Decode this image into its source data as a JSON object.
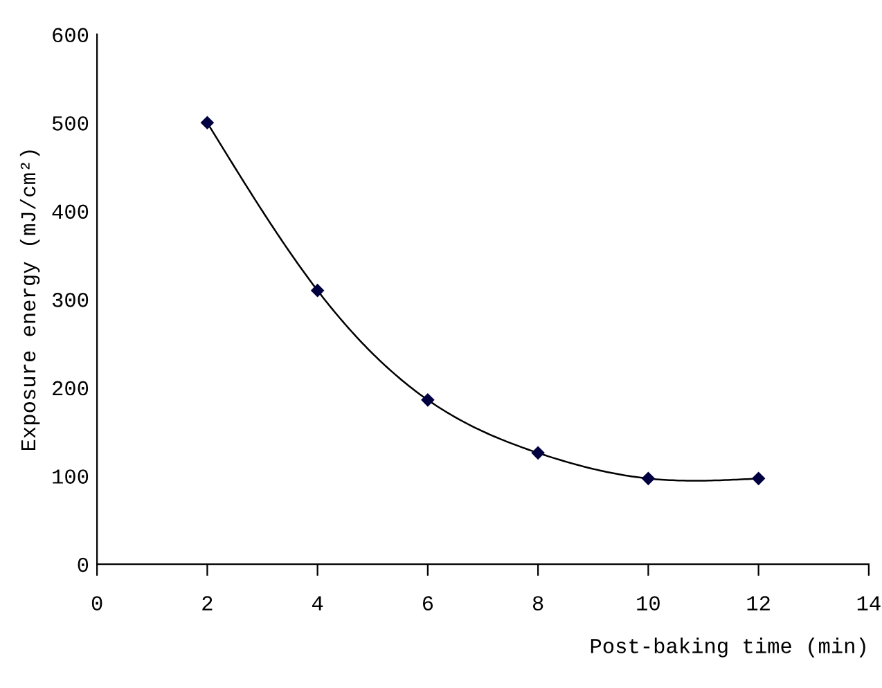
{
  "chart_data": {
    "type": "line",
    "xlabel": "Post-baking time (min)",
    "ylabel": "Exposure energy (mJ/cm²)",
    "x": [
      2,
      4,
      6,
      8,
      10,
      12
    ],
    "series": [
      {
        "color": "#000040",
        "values": [
          500,
          310,
          186,
          126,
          97,
          97
        ]
      }
    ],
    "xlim": [
      0,
      14
    ],
    "xticks": [
      0,
      2,
      4,
      6,
      8,
      10,
      12,
      14
    ],
    "ylim": [
      0,
      600
    ],
    "yticks": [
      0,
      100,
      200,
      300,
      400,
      500,
      600
    ],
    "grid": false,
    "legend": false,
    "marker": "diamond",
    "line_style": "solid"
  }
}
